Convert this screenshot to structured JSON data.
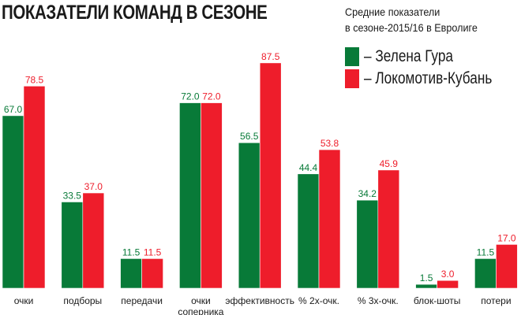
{
  "chart_data": {
    "type": "bar",
    "title": "ПОКАЗАТЕЛИ КОМАНД В СЕЗОНЕ",
    "subtitle_lines": [
      "Средние показатели",
      "в сезоне-2015/16 в Евролиге"
    ],
    "categories": [
      "очки",
      "подборы",
      "передачи",
      "очки соперника",
      "эффективность",
      "% 2х-очк.",
      "% 3х-очк.",
      "блок-шоты",
      "потери"
    ],
    "series": [
      {
        "name": "– Зелена Гура",
        "color": "#087a38",
        "labels": [
          "67.0",
          "33.5",
          "11.5",
          "72.0",
          "56.5",
          "44.4",
          "34.2",
          "1.5",
          "11.5"
        ],
        "values": [
          67.0,
          33.5,
          11.5,
          72.0,
          56.5,
          44.4,
          34.2,
          1.5,
          11.5
        ]
      },
      {
        "name": "– Локомотив-Кубань",
        "color": "#ee1d2b",
        "labels": [
          "78.5",
          "37.0",
          "11.5",
          "72.0",
          "87.5",
          "53.8",
          "45.9",
          "3.0",
          "17.0"
        ],
        "values": [
          78.5,
          37.0,
          11.5,
          72.0,
          87.5,
          53.8,
          45.9,
          3.0,
          17.0
        ]
      }
    ],
    "legend_position": "top-right",
    "grid": false,
    "ylim": [
      0,
      100
    ]
  }
}
